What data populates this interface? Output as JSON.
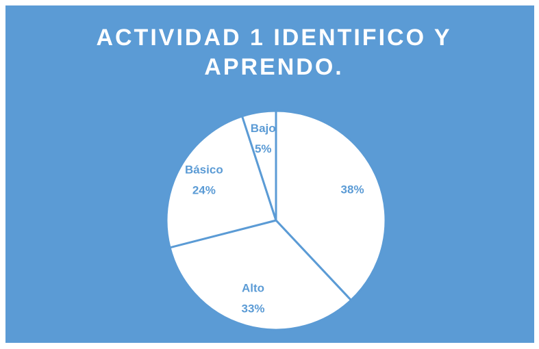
{
  "chart_data": {
    "type": "pie",
    "title": "ACTIVIDAD 1 IDENTIFICO  Y APRENDO.",
    "categories": [
      null,
      "Alto",
      "Básico",
      "Bajo"
    ],
    "values": [
      38,
      33,
      24,
      5
    ],
    "value_labels": [
      "38%",
      "33%",
      "24%",
      "5%"
    ],
    "color": "#ffffff",
    "background": "#5b9bd5",
    "label_color": "#5b9bd5"
  }
}
